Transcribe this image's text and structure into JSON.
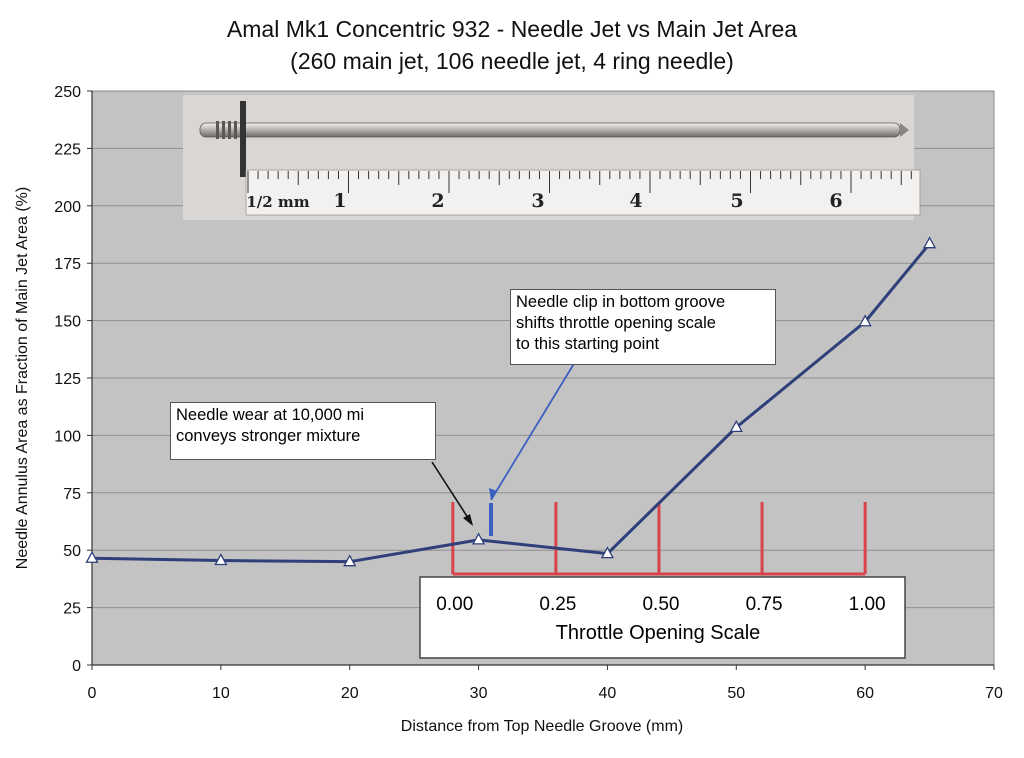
{
  "chart_data": {
    "type": "line",
    "title": "Amal Mk1 Concentric 932 - Needle Jet vs Main Jet Area",
    "subtitle": "(260 main jet, 106 needle jet, 4 ring needle)",
    "xlabel": "Distance from Top Needle Groove (mm)",
    "ylabel": "Needle Annulus Area as Fraction of Main Jet Area (%)",
    "xlim": [
      0,
      70
    ],
    "ylim": [
      0,
      250
    ],
    "x_ticks": [
      0,
      10,
      20,
      30,
      40,
      50,
      60,
      70
    ],
    "y_ticks": [
      0,
      25,
      50,
      75,
      100,
      125,
      150,
      175,
      200,
      225,
      250
    ],
    "grid": true,
    "series": [
      {
        "name": "Needle annulus area",
        "color": "#2f3f7a",
        "marker": "triangle",
        "x": [
          0,
          10,
          20,
          30,
          40,
          50,
          60,
          65
        ],
        "y": [
          46.5,
          45.5,
          45,
          54.5,
          48.5,
          103.5,
          149.5,
          183.5
        ]
      }
    ],
    "throttle_scale": {
      "label": "Throttle Opening Scale",
      "color": "#d9434b",
      "positions_mm": [
        28,
        36,
        44,
        52,
        60
      ],
      "tick_labels": [
        "0.00",
        "0.25",
        "0.50",
        "0.75",
        "1.00"
      ]
    },
    "annotations": [
      {
        "text_lines": [
          "Needle clip in bottom groove",
          "shifts throttle opening scale",
          "to this starting point"
        ],
        "color": "#3a5fc0"
      },
      {
        "text_lines": [
          "Needle wear at 10,000 mi",
          "conveys stronger mixture"
        ],
        "color": "#111111"
      }
    ],
    "needle_photo": {
      "ruler_labels": [
        "1/2 mm",
        "1",
        "2",
        "3",
        "4",
        "5",
        "6"
      ]
    }
  }
}
